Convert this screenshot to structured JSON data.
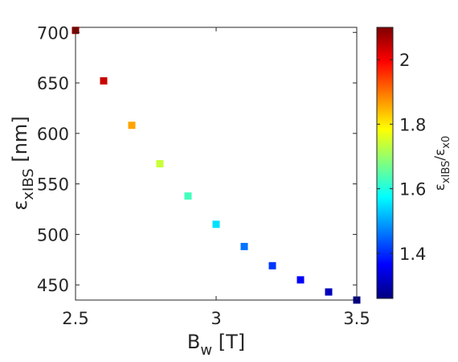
{
  "chart_data": {
    "type": "scatter",
    "title": "",
    "xlabel": {
      "main": "B",
      "sub": "w",
      "rest": " [T]"
    },
    "ylabel": {
      "main": "ε",
      "sub": "xIBS",
      "rest": " [nm]"
    },
    "colorbar_label": {
      "main": "ε",
      "sub": "xIBS",
      "sep": "/ε",
      "sub2": "x0"
    },
    "xlim": [
      2.5,
      3.5
    ],
    "ylim": [
      435,
      705
    ],
    "xticks": [
      2.5,
      3,
      3.5
    ],
    "xtick_labels": [
      "2.5",
      "3",
      "3.5"
    ],
    "yticks": [
      450,
      500,
      550,
      600,
      650,
      700
    ],
    "ytick_labels": [
      "450",
      "500",
      "550",
      "600",
      "650",
      "700"
    ],
    "colormap": "jet",
    "clim": [
      1.26,
      2.1
    ],
    "cticks": [
      1.4,
      1.6,
      1.8,
      2.0
    ],
    "ctick_labels": [
      "1.4",
      "1.6",
      "1.8",
      "2"
    ],
    "grid": false,
    "marker": "square",
    "points": [
      {
        "x": 2.5,
        "y": 702,
        "c": 2.1
      },
      {
        "x": 2.6,
        "y": 652,
        "c": 2.04
      },
      {
        "x": 2.7,
        "y": 608,
        "c": 1.86
      },
      {
        "x": 2.8,
        "y": 570,
        "c": 1.74
      },
      {
        "x": 2.9,
        "y": 538,
        "c": 1.63
      },
      {
        "x": 3.0,
        "y": 510,
        "c": 1.55
      },
      {
        "x": 3.1,
        "y": 488,
        "c": 1.46
      },
      {
        "x": 3.2,
        "y": 469,
        "c": 1.41
      },
      {
        "x": 3.3,
        "y": 455,
        "c": 1.36
      },
      {
        "x": 3.4,
        "y": 443,
        "c": 1.31
      },
      {
        "x": 3.5,
        "y": 435,
        "c": 1.26
      }
    ]
  }
}
